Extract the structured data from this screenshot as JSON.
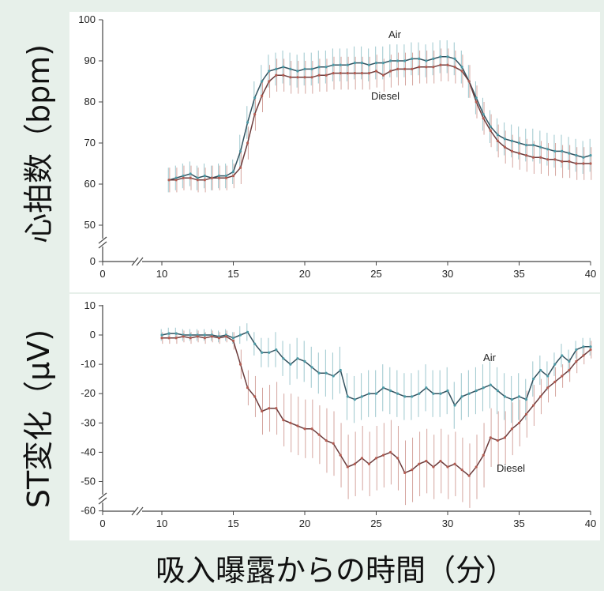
{
  "x_axis_title": "吸入曝露からの時間（分）",
  "chart_data": [
    {
      "type": "line",
      "title": "",
      "ylabel": "心拍数（bpm)",
      "xlim": [
        0,
        40
      ],
      "ylim": [
        0,
        100
      ],
      "x_ticks": [
        "0",
        "10",
        "15",
        "20",
        "25",
        "30",
        "35",
        "40"
      ],
      "y_ticks": [
        "0",
        "50",
        "60",
        "70",
        "80",
        "90",
        "100"
      ],
      "axis_break": true,
      "x": [
        10.5,
        11,
        11.5,
        12,
        12.5,
        13,
        13.5,
        14,
        14.5,
        15,
        15.5,
        16,
        16.5,
        17,
        17.5,
        18,
        18.5,
        19,
        19.5,
        20,
        20.5,
        21,
        21.5,
        22,
        22.5,
        23,
        23.5,
        24,
        24.5,
        25,
        25.5,
        26,
        26.5,
        27,
        27.5,
        28,
        28.5,
        29,
        29.5,
        30,
        30.5,
        31,
        31.5,
        32,
        32.5,
        33,
        33.5,
        34,
        34.5,
        35,
        35.5,
        36,
        36.5,
        37,
        37.5,
        38,
        38.5,
        39,
        39.5,
        40
      ],
      "series": [
        {
          "name": "Air",
          "values": [
            61,
            61.5,
            62,
            62.5,
            61.5,
            62,
            61.5,
            62,
            62,
            63,
            68,
            75,
            81,
            85,
            87.5,
            88,
            88.5,
            88,
            87.5,
            88,
            88,
            88.5,
            88.5,
            89,
            89,
            89,
            89.5,
            89.5,
            89,
            89.5,
            89.5,
            90,
            90,
            90,
            90.5,
            90.5,
            90,
            90.5,
            91,
            91,
            90.5,
            88.5,
            85,
            81,
            77,
            74,
            72,
            71,
            70.5,
            70,
            69.5,
            69.5,
            69,
            68.5,
            68,
            68,
            67.5,
            67,
            66.5,
            67
          ],
          "errors": [
            3,
            3,
            3,
            3,
            3,
            3,
            3,
            3,
            3,
            3,
            4,
            4,
            4,
            4,
            4,
            4,
            4,
            4,
            4,
            4,
            4,
            4,
            4,
            4,
            4,
            4,
            4,
            4,
            4,
            4,
            4,
            4,
            4,
            4,
            4,
            4,
            4,
            4,
            4,
            4,
            4,
            4,
            4,
            4,
            4,
            4,
            4,
            4,
            4,
            4,
            4,
            4,
            4,
            4,
            4,
            4,
            4,
            4,
            4,
            4
          ],
          "color": "#4d9aa6"
        },
        {
          "name": "Diesel",
          "values": [
            61,
            61,
            61.5,
            61.5,
            61,
            61,
            61.5,
            61.5,
            61.5,
            62,
            64,
            70,
            77,
            81.5,
            85,
            86.5,
            86.5,
            86,
            86,
            86,
            86,
            86.5,
            86.5,
            87,
            87,
            87,
            87,
            87,
            87,
            87.5,
            86.5,
            87.5,
            88,
            88,
            88,
            88.5,
            88.5,
            88.5,
            89,
            89,
            88.5,
            87.5,
            85,
            80,
            76,
            73,
            70.5,
            69,
            68,
            67.5,
            67,
            66.5,
            66.5,
            66,
            66,
            65.5,
            65.5,
            65,
            65,
            65
          ],
          "errors": [
            3,
            3,
            3,
            3,
            3,
            3,
            3,
            3,
            3,
            3,
            4,
            4,
            4,
            4,
            4,
            4,
            4,
            4,
            4,
            4,
            4,
            4,
            4,
            4,
            4,
            4,
            4,
            4,
            4,
            4,
            4,
            4,
            4,
            4,
            4,
            4,
            4,
            4,
            4,
            4,
            4,
            4,
            4,
            4,
            4,
            4,
            4,
            4,
            4,
            4,
            4,
            4,
            4,
            4,
            4,
            4,
            4,
            4,
            4,
            4
          ],
          "color": "#b35c52"
        }
      ]
    },
    {
      "type": "line",
      "title": "",
      "ylabel": "ST変化（μV)",
      "xlim": [
        0,
        40
      ],
      "ylim": [
        -60,
        10
      ],
      "x_ticks": [
        "0",
        "10",
        "15",
        "20",
        "25",
        "30",
        "35",
        "40"
      ],
      "y_ticks": [
        "10",
        "0",
        "-10",
        "-20",
        "-30",
        "-40",
        "-50",
        "-60"
      ],
      "axis_break": true,
      "x": [
        10,
        10.5,
        11,
        11.5,
        12,
        12.5,
        13,
        13.5,
        14,
        14.5,
        15,
        15.5,
        16,
        16.5,
        17,
        17.5,
        18,
        18.5,
        19,
        19.5,
        20,
        20.5,
        21,
        21.5,
        22,
        22.5,
        23,
        23.5,
        24,
        24.5,
        25,
        25.5,
        26,
        26.5,
        27,
        27.5,
        28,
        28.5,
        29,
        29.5,
        30,
        30.5,
        31,
        31.5,
        32,
        32.5,
        33,
        33.5,
        34,
        34.5,
        35,
        35.5,
        36,
        36.5,
        37,
        37.5,
        38,
        38.5,
        39,
        39.5,
        40
      ],
      "series": [
        {
          "name": "Air",
          "values": [
            0,
            0.5,
            0.5,
            0,
            0,
            0,
            0,
            0,
            -0.5,
            0,
            -1,
            0,
            1,
            -3,
            -6,
            -6,
            -5,
            -8,
            -10,
            -8,
            -9,
            -11,
            -13,
            -13,
            -14,
            -12,
            -21,
            -22,
            -21,
            -20,
            -20,
            -18,
            -19,
            -20,
            -21,
            -21,
            -20,
            -18,
            -20,
            -20,
            -19,
            -24,
            -21,
            -20,
            -19,
            -18,
            -17,
            -19,
            -21,
            -22,
            -21,
            -22,
            -15,
            -12,
            -14,
            -10,
            -7,
            -9,
            -5,
            -4,
            -4
          ],
          "errors": [
            2,
            2,
            2,
            2,
            2,
            2,
            2,
            2,
            2,
            2,
            2,
            3,
            3,
            4,
            5,
            5,
            6,
            6,
            7,
            7,
            7,
            7,
            7,
            8,
            8,
            8,
            8,
            8,
            8,
            8,
            8,
            8,
            8,
            8,
            8,
            8,
            8,
            8,
            8,
            8,
            8,
            8,
            8,
            8,
            8,
            8,
            8,
            8,
            8,
            8,
            8,
            7,
            6,
            5,
            5,
            4,
            4,
            4,
            3,
            3,
            3
          ],
          "color": "#4d9aa6"
        },
        {
          "name": "Diesel",
          "values": [
            -1,
            -1,
            -1,
            -0.5,
            -1,
            -0.5,
            -1,
            -0.5,
            -1,
            -0.5,
            -2,
            -10,
            -18,
            -21,
            -26,
            -25,
            -25,
            -29,
            -30,
            -31,
            -32,
            -32,
            -34,
            -36,
            -37,
            -41,
            -45,
            -44,
            -42,
            -44,
            -42,
            -41,
            -40,
            -42,
            -47,
            -46,
            -44,
            -43,
            -45,
            -43,
            -45,
            -44,
            -46,
            -48,
            -45,
            -41,
            -35,
            -36,
            -35,
            -32,
            -30,
            -27,
            -24,
            -21,
            -18,
            -16,
            -14,
            -12,
            -9,
            -7,
            -5
          ],
          "errors": [
            2,
            2,
            2,
            2,
            2,
            2,
            2,
            2,
            2,
            2,
            3,
            5,
            6,
            7,
            8,
            8,
            9,
            9,
            10,
            10,
            10,
            10,
            10,
            11,
            11,
            11,
            11,
            11,
            11,
            11,
            11,
            11,
            11,
            11,
            11,
            11,
            11,
            11,
            11,
            11,
            11,
            11,
            11,
            11,
            11,
            11,
            10,
            10,
            9,
            9,
            8,
            8,
            7,
            6,
            5,
            5,
            4,
            4,
            4,
            3,
            3
          ],
          "color": "#b35c52"
        }
      ]
    }
  ]
}
